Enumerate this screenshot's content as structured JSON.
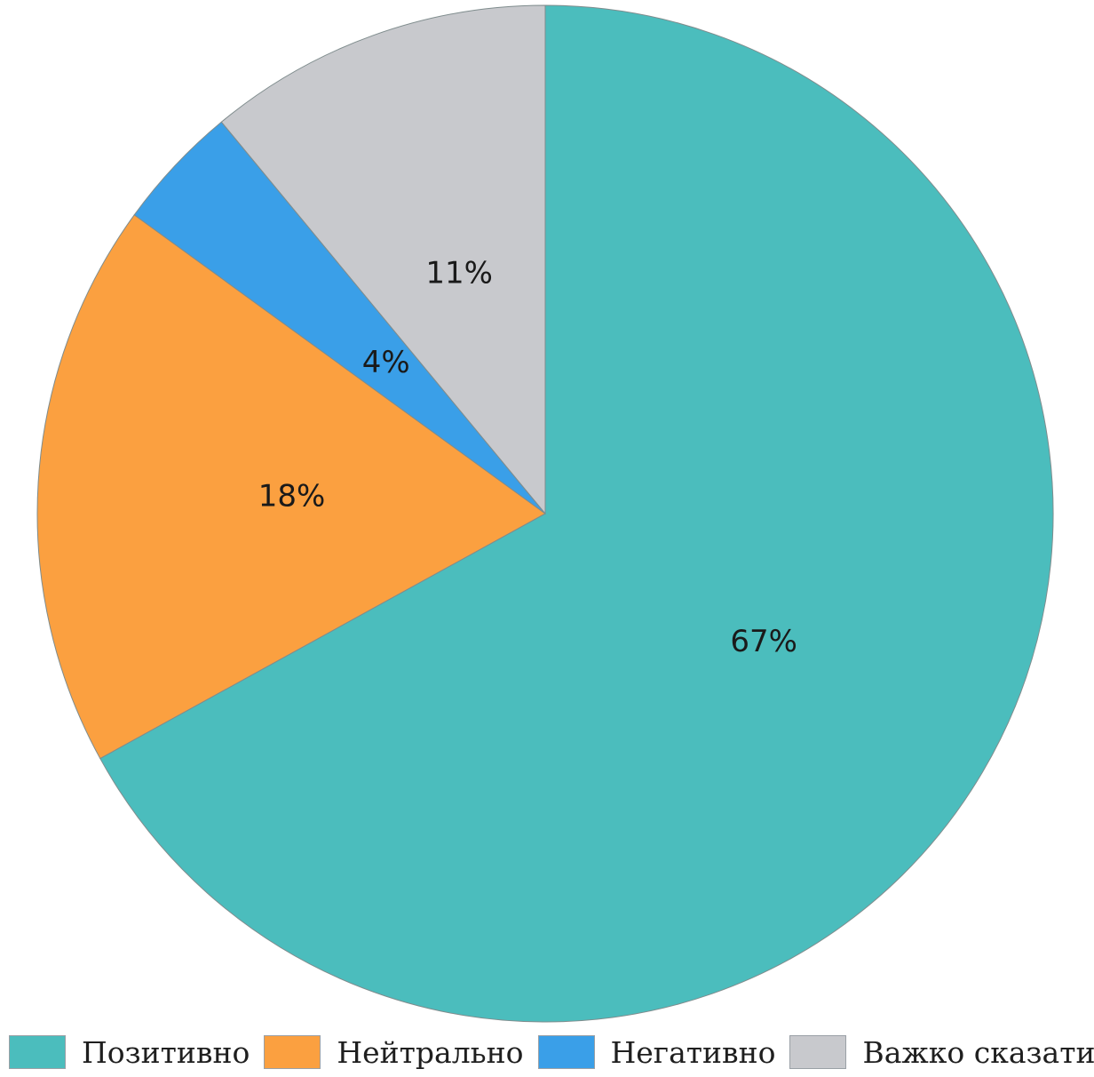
{
  "chart_data": {
    "type": "pie",
    "title": "",
    "slices": [
      {
        "label": "Позитивно",
        "value": 67,
        "display": "67%",
        "color": "#4bbdbd"
      },
      {
        "label": "Нейтрально",
        "value": 18,
        "display": "18%",
        "color": "#fba040"
      },
      {
        "label": "Негативно",
        "value": 4,
        "display": "4%",
        "color": "#3a9fe8"
      },
      {
        "label": "Важко сказати",
        "value": 11,
        "display": "11%",
        "color": "#c8c9cd"
      }
    ],
    "start_angle": "12 o'clock",
    "direction": "clockwise",
    "legend_position": "bottom"
  }
}
